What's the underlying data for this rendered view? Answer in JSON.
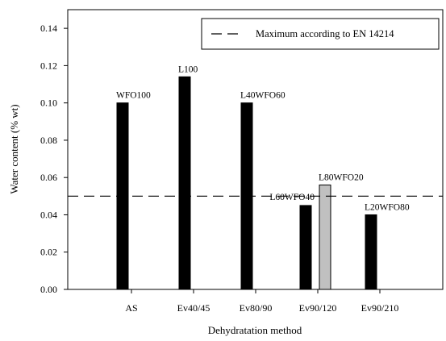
{
  "chart_data": {
    "type": "bar",
    "xlabel": "Dehydratation method",
    "ylabel": "Water content (% wt)",
    "ylim": [
      0,
      0.15
    ],
    "yticks": [
      "0.00",
      "0.02",
      "0.04",
      "0.06",
      "0.08",
      "0.10",
      "0.12",
      "0.14"
    ],
    "ytick_values": [
      0,
      0.02,
      0.04,
      0.06,
      0.08,
      0.1,
      0.12,
      0.14
    ],
    "categories": [
      "AS",
      "Ev40/45",
      "Ev80/90",
      "Ev90/120",
      "Ev90/210"
    ],
    "bars": [
      {
        "category": "AS",
        "label": "WFO100",
        "value": 0.1,
        "color": "#000000"
      },
      {
        "category": "Ev40/45",
        "label": "L100",
        "value": 0.114,
        "color": "#000000"
      },
      {
        "category": "Ev80/90",
        "label": "L40WFO60",
        "value": 0.1,
        "color": "#000000"
      },
      {
        "category": "Ev90/120",
        "label": "L60WFO40",
        "value": 0.045,
        "color": "#000000"
      },
      {
        "category": "Ev90/120",
        "label": "L80WFO20",
        "value": 0.056,
        "color": "#c0c0c0"
      },
      {
        "category": "Ev90/210",
        "label": "L20WFO80",
        "value": 0.04,
        "color": "#000000"
      }
    ],
    "reference_line": {
      "value": 0.05,
      "style": "dashed",
      "label": "Maximum according to EN 14214"
    },
    "legend": {
      "position": "top-right",
      "entries": [
        "Maximum according to EN 14214"
      ]
    },
    "grid": false
  }
}
